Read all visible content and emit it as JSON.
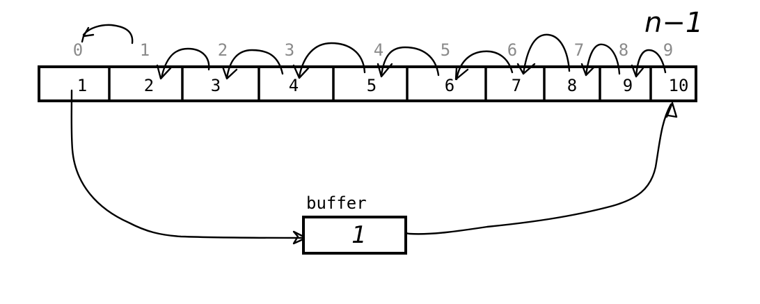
{
  "array": {
    "cells": [
      "1",
      "2",
      "3",
      "4",
      "5",
      "6",
      "7",
      "8",
      "9",
      "10"
    ],
    "indices": [
      "0",
      "1",
      "2",
      "3",
      "4",
      "5",
      "6",
      "7",
      "8",
      "9"
    ]
  },
  "buffer": {
    "title": "buffer",
    "value": "1"
  },
  "annotation": {
    "last_index": "n−1"
  }
}
